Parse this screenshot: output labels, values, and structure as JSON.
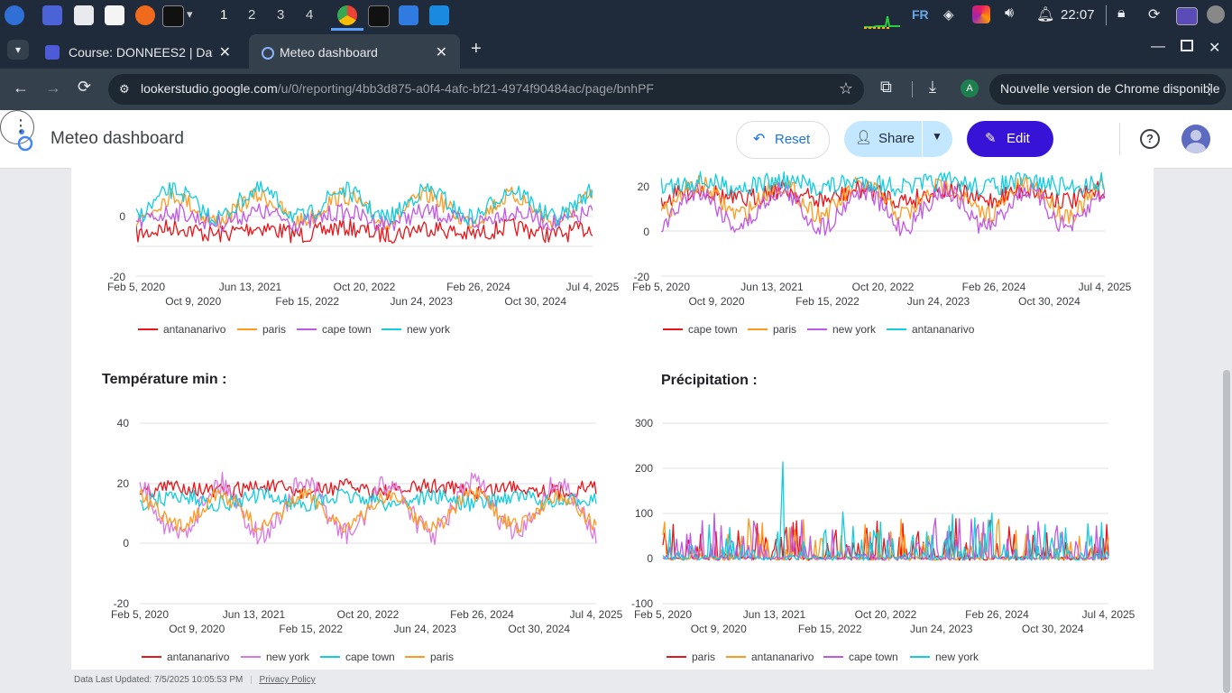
{
  "taskbar": {
    "workspaces": [
      "1",
      "2",
      "3",
      "4"
    ],
    "language": "FR",
    "clock": "22:07"
  },
  "browser": {
    "tabs": [
      {
        "title": "Course: DONNEES2 | Dat",
        "active": false
      },
      {
        "title": "Meteo dashboard",
        "active": true
      }
    ],
    "url_host": "lookerstudio.google.com",
    "url_path": "/u/0/reporting/4bb3d875-a0f4-4afc-bf21-4974f90484ac/page/bnhPF",
    "profile_initial": "A",
    "update_label": "Nouvelle version de Chrome disponible"
  },
  "header": {
    "title": "Meteo dashboard",
    "reset_label": "Reset",
    "share_label": "Share",
    "edit_label": "Edit"
  },
  "footer": {
    "updated": "Data Last Updated: 7/5/2025 10:05:53 PM",
    "privacy": "Privacy Policy"
  },
  "colors": {
    "red": "#e8161b",
    "orange": "#ff9a1f",
    "purple": "#c058e6",
    "cyan": "#12cde0",
    "pink": "#dc77e0"
  },
  "chart_data": [
    {
      "type": "line",
      "title": "",
      "x_ticks_top": [
        "Feb 5, 2020",
        "Jun 13, 2021",
        "Oct 20, 2022",
        "Feb 26, 2024",
        "Jul 4, 2025"
      ],
      "x_ticks_bottom": [
        "Oct 9, 2020",
        "Feb 15, 2022",
        "Jun 24, 2023",
        "Oct 30, 2024"
      ],
      "y_ticks": [
        "0",
        "-20"
      ],
      "y_visible_min": -20,
      "series": [
        {
          "name": "antananarivo",
          "color": "red"
        },
        {
          "name": "paris",
          "color": "orange"
        },
        {
          "name": "cape town",
          "color": "purple"
        },
        {
          "name": "new york",
          "color": "cyan"
        }
      ]
    },
    {
      "type": "line",
      "title": "",
      "x_ticks_top": [
        "Feb 5, 2020",
        "Jun 13, 2021",
        "Oct 20, 2022",
        "Feb 26, 2024",
        "Jul 4, 2025"
      ],
      "x_ticks_bottom": [
        "Oct 9, 2020",
        "Feb 15, 2022",
        "Jun 24, 2023",
        "Oct 30, 2024"
      ],
      "y_ticks": [
        "20",
        "0",
        "-20"
      ],
      "y_visible_min": -20,
      "series": [
        {
          "name": "cape town",
          "color": "red"
        },
        {
          "name": "paris",
          "color": "orange"
        },
        {
          "name": "new york",
          "color": "purple"
        },
        {
          "name": "antananarivo",
          "color": "cyan"
        }
      ]
    },
    {
      "type": "line",
      "title": "Température min :",
      "x_ticks_top": [
        "Feb 5, 2020",
        "Jun 13, 2021",
        "Oct 20, 2022",
        "Feb 26, 2024",
        "Jul 4, 2025"
      ],
      "x_ticks_bottom": [
        "Oct 9, 2020",
        "Feb 15, 2022",
        "Jun 24, 2023",
        "Oct 30, 2024"
      ],
      "y_ticks": [
        "40",
        "20",
        "0",
        "-20"
      ],
      "ylim": [
        -20,
        40
      ],
      "series": [
        {
          "name": "antananarivo",
          "color": "red"
        },
        {
          "name": "new york",
          "color": "pink"
        },
        {
          "name": "cape town",
          "color": "cyan"
        },
        {
          "name": "paris",
          "color": "orange"
        }
      ]
    },
    {
      "type": "line",
      "title": "Précipitation :",
      "x_ticks_top": [
        "Feb 5, 2020",
        "Jun 13, 2021",
        "Oct 20, 2022",
        "Feb 26, 2024",
        "Jul 4, 2025"
      ],
      "x_ticks_bottom": [
        "Oct 9, 2020",
        "Feb 15, 2022",
        "Jun 24, 2023",
        "Oct 30, 2024"
      ],
      "y_ticks": [
        "300",
        "200",
        "100",
        "0",
        "-100"
      ],
      "ylim": [
        -100,
        300
      ],
      "series": [
        {
          "name": "paris",
          "color": "red"
        },
        {
          "name": "antananarivo",
          "color": "orange"
        },
        {
          "name": "cape town",
          "color": "purple"
        },
        {
          "name": "new york",
          "color": "cyan"
        }
      ]
    }
  ]
}
